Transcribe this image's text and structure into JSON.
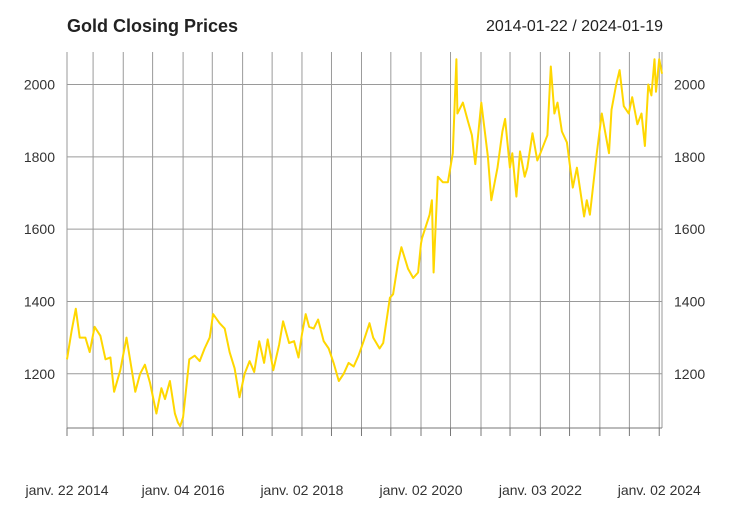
{
  "chart_data": {
    "type": "line",
    "title": "Gold Closing Prices",
    "date_range": "2014-01-22 / 2024-01-19",
    "xlabel": "",
    "ylabel": "",
    "grid": true,
    "ylim": [
      1050,
      2090
    ],
    "xlim": [
      "2014-01-22",
      "2024-01-19"
    ],
    "y_ticks": [
      1200,
      1400,
      1600,
      1800,
      2000
    ],
    "x_ticks": [
      {
        "date": "2014-01-22",
        "label": "janv. 22 2014"
      },
      {
        "date": "2016-01-04",
        "label": "janv. 04 2016"
      },
      {
        "date": "2018-01-02",
        "label": "janv. 02 2018"
      },
      {
        "date": "2020-01-02",
        "label": "janv. 02 2020"
      },
      {
        "date": "2022-01-03",
        "label": "janv. 03 2022"
      },
      {
        "date": "2024-01-02",
        "label": "janv. 02 2024"
      }
    ],
    "x_minor_ticks": [
      "2014-07-01",
      "2015-01-02",
      "2015-07-01",
      "2016-07-01",
      "2017-01-03",
      "2017-07-03",
      "2018-07-02",
      "2019-01-02",
      "2019-07-01",
      "2020-07-01",
      "2021-01-04",
      "2021-07-01",
      "2022-07-01",
      "2023-01-03",
      "2023-07-03"
    ],
    "series": [
      {
        "color": "#ffd700",
        "x": [
          "2014-01-22",
          "2014-02-20",
          "2014-03-17",
          "2014-04-10",
          "2014-05-15",
          "2014-06-10",
          "2014-07-10",
          "2014-08-15",
          "2014-09-15",
          "2014-10-15",
          "2014-11-07",
          "2014-12-15",
          "2015-01-22",
          "2015-02-20",
          "2015-03-17",
          "2015-04-15",
          "2015-05-15",
          "2015-06-15",
          "2015-07-24",
          "2015-08-24",
          "2015-09-15",
          "2015-10-15",
          "2015-11-15",
          "2015-12-03",
          "2015-12-17",
          "2016-01-04",
          "2016-02-11",
          "2016-03-15",
          "2016-04-15",
          "2016-05-15",
          "2016-06-15",
          "2016-07-06",
          "2016-08-15",
          "2016-09-15",
          "2016-10-15",
          "2016-11-15",
          "2016-12-15",
          "2017-01-15",
          "2017-02-15",
          "2017-03-15",
          "2017-04-15",
          "2017-05-15",
          "2017-06-06",
          "2017-07-10",
          "2017-08-15",
          "2017-09-08",
          "2017-10-15",
          "2017-11-15",
          "2017-12-12",
          "2018-01-02",
          "2018-01-25",
          "2018-02-15",
          "2018-03-15",
          "2018-04-11",
          "2018-05-15",
          "2018-06-15",
          "2018-07-15",
          "2018-08-16",
          "2018-09-15",
          "2018-10-15",
          "2018-11-15",
          "2018-12-15",
          "2019-01-15",
          "2019-02-20",
          "2019-03-15",
          "2019-04-23",
          "2019-05-15",
          "2019-06-25",
          "2019-07-15",
          "2019-08-15",
          "2019-09-04",
          "2019-10-15",
          "2019-11-15",
          "2019-12-15",
          "2020-01-02",
          "2020-01-08",
          "2020-02-24",
          "2020-03-09",
          "2020-03-19",
          "2020-04-14",
          "2020-05-15",
          "2020-06-15",
          "2020-07-15",
          "2020-08-06",
          "2020-08-12",
          "2020-09-15",
          "2020-10-15",
          "2020-11-09",
          "2020-11-30",
          "2021-01-06",
          "2021-02-15",
          "2021-03-08",
          "2021-04-15",
          "2021-05-15",
          "2021-06-01",
          "2021-06-30",
          "2021-07-15",
          "2021-08-09",
          "2021-08-31",
          "2021-09-29",
          "2021-10-15",
          "2021-11-16",
          "2021-12-15",
          "2022-01-03",
          "2022-02-15",
          "2022-03-08",
          "2022-03-30",
          "2022-04-18",
          "2022-05-15",
          "2022-06-15",
          "2022-07-21",
          "2022-08-15",
          "2022-09-28",
          "2022-10-15",
          "2022-11-03",
          "2022-12-15",
          "2023-01-15",
          "2023-02-28",
          "2023-03-15",
          "2023-04-13",
          "2023-05-04",
          "2023-05-30",
          "2023-06-29",
          "2023-07-20",
          "2023-08-21",
          "2023-09-15",
          "2023-10-06",
          "2023-10-27",
          "2023-11-15",
          "2023-12-04",
          "2023-12-13",
          "2024-01-02",
          "2024-01-19"
        ],
        "y": [
          1240,
          1320,
          1380,
          1300,
          1300,
          1260,
          1330,
          1305,
          1240,
          1245,
          1150,
          1210,
          1300,
          1220,
          1150,
          1200,
          1225,
          1175,
          1090,
          1160,
          1130,
          1180,
          1090,
          1065,
          1055,
          1080,
          1240,
          1250,
          1235,
          1270,
          1300,
          1365,
          1340,
          1325,
          1260,
          1215,
          1135,
          1200,
          1235,
          1205,
          1290,
          1230,
          1295,
          1210,
          1280,
          1345,
          1285,
          1290,
          1245,
          1310,
          1365,
          1330,
          1325,
          1350,
          1290,
          1270,
          1230,
          1180,
          1200,
          1230,
          1220,
          1250,
          1290,
          1340,
          1300,
          1270,
          1285,
          1410,
          1420,
          1510,
          1550,
          1490,
          1465,
          1480,
          1560,
          1575,
          1640,
          1680,
          1480,
          1745,
          1730,
          1730,
          1810,
          2070,
          1920,
          1950,
          1900,
          1860,
          1780,
          1950,
          1800,
          1680,
          1770,
          1870,
          1905,
          1770,
          1810,
          1690,
          1815,
          1745,
          1770,
          1865,
          1790,
          1810,
          1860,
          2050,
          1920,
          1950,
          1870,
          1840,
          1715,
          1770,
          1635,
          1680,
          1640,
          1810,
          1920,
          1810,
          1930,
          2000,
          2040,
          1940,
          1920,
          1965,
          1890,
          1920,
          1830,
          2000,
          1970,
          2070,
          1980,
          2070,
          2030
        ]
      }
    ]
  }
}
